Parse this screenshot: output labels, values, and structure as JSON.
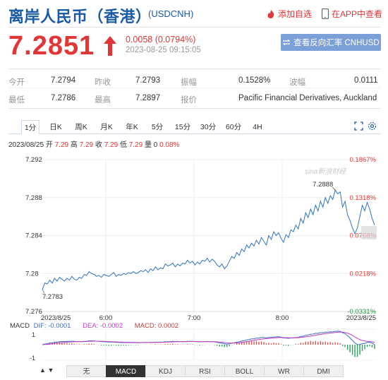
{
  "header": {
    "title": "离岸人民币（香港）",
    "code": "(USDCNH)",
    "add_watchlist": "添加自选",
    "app_view": "在APP中查看"
  },
  "quote": {
    "price": "7.2851",
    "change": "0.0058 (0.0794%)",
    "time": "2023-08-25 09:15:05",
    "reverse_label": "查看反向汇率 CNHUSD"
  },
  "stats": [
    {
      "label": "今开",
      "value": "7.2794"
    },
    {
      "label": "昨收",
      "value": "7.2793"
    },
    {
      "label": "振幅",
      "value": "0.1528%"
    },
    {
      "label": "波幅",
      "value": "0.0111"
    },
    {
      "label": "最低",
      "value": "7.2786"
    },
    {
      "label": "最高",
      "value": "7.2897"
    },
    {
      "label": "报价",
      "value": "Pacific Financial Derivatives, Auckland"
    }
  ],
  "tabs": [
    "1分",
    "日K",
    "周K",
    "月K",
    "年K",
    "5分",
    "15分",
    "30分",
    "60分",
    "4H"
  ],
  "active_tab": "1分",
  "ohlc": {
    "date": "2023/08/25",
    "open_label": "开",
    "open": "7.29",
    "high_label": "高",
    "high": "7.29",
    "close_label": "收",
    "close": "7.29",
    "low_label": "低",
    "low": "7.29",
    "vol_label": "量",
    "vol": "0",
    "pct": "0.08%"
  },
  "chart_data": {
    "type": "line",
    "y_ticks": [
      "7.292",
      "7.288",
      "7.284",
      "7.28",
      "7.276"
    ],
    "y_values": [
      7.292,
      7.288,
      7.284,
      7.28,
      7.276
    ],
    "ylim": [
      7.276,
      7.292
    ],
    "pct_ticks": [
      "0.1867%",
      "0.1318%",
      "0.0768%",
      "0.0218%",
      "-0.0331%"
    ],
    "x_ticks": [
      "2023/8/25",
      "6:00",
      "7:00",
      "8:00",
      "2023/8/25"
    ],
    "annotations": {
      "max": "7.2888",
      "min": "7.2783"
    },
    "watermark": "sina新浪财经",
    "series": [
      {
        "values": [
          7.2783,
          7.279,
          7.2789,
          7.2793,
          7.279,
          7.2795,
          7.2792,
          7.2796,
          7.2794,
          7.2792,
          7.2795,
          7.2793,
          7.2797,
          7.2794,
          7.2793,
          7.2796,
          7.2795,
          7.2799,
          7.2798,
          7.2802,
          7.28,
          7.2799,
          7.2797,
          7.2798,
          7.2796,
          7.2799,
          7.2798,
          7.2797,
          7.2799,
          7.2801,
          7.2797,
          7.2799,
          7.2798,
          7.28,
          7.2799,
          7.2801,
          7.28,
          7.2802,
          7.28,
          7.2801,
          7.2803,
          7.2802,
          7.2804,
          7.2801,
          7.2805,
          7.2803,
          7.2807,
          7.2804,
          7.2806,
          7.2805,
          7.281,
          7.2808,
          7.2809,
          7.2811,
          7.2807,
          7.281,
          7.2808,
          7.2811,
          7.281,
          7.2814,
          7.2811,
          7.2813,
          7.2809,
          7.2812,
          7.281,
          7.2814,
          7.2813,
          7.2816,
          7.2812,
          7.2815,
          7.2813,
          7.2809,
          7.2807,
          7.281,
          7.2805,
          7.2808,
          7.2813,
          7.2818,
          7.2816,
          7.2822,
          7.2819,
          7.2826,
          7.2823,
          7.283,
          7.2827,
          7.2832,
          7.2829,
          7.2835,
          7.2831,
          7.2838,
          7.2834,
          7.283,
          7.284,
          7.2836,
          7.2844,
          7.284,
          7.2843,
          7.2837,
          7.2833,
          7.2841,
          7.2838,
          7.2846,
          7.2844,
          7.2851,
          7.2847,
          7.2858,
          7.2853,
          7.2864,
          7.2859,
          7.2868,
          7.2862,
          7.2872,
          7.2866,
          7.2876,
          7.287,
          7.288,
          7.2874,
          7.2882,
          7.2878,
          7.2888,
          7.2884,
          7.2886,
          7.287,
          7.2876,
          7.2862,
          7.2856,
          7.2848,
          7.2842,
          7.2848,
          7.286,
          7.2872,
          7.2866,
          7.2875,
          7.2868,
          7.2858,
          7.2851
        ]
      }
    ]
  },
  "macd": {
    "label": "MACD",
    "dif": "DIF: -0.0001",
    "dea": "DEA: -0.0002",
    "macd": "MACD: 0.0002",
    "y_ticks": [
      "1",
      "-1"
    ],
    "colors": {
      "dif": "#3b6fc4",
      "dea": "#c43bc4",
      "macd": "#c43b3b",
      "up": "#d9534f",
      "down": "#2aa05a"
    }
  },
  "indicators": [
    "无",
    "MACD",
    "KDJ",
    "RSI",
    "BOLL",
    "WR",
    "DMI"
  ],
  "active_indicator": "MACD",
  "colors": {
    "accent": "#1a5aa6",
    "up": "#e23535",
    "line": "#2e74c0",
    "button": "#7ba0d8"
  }
}
